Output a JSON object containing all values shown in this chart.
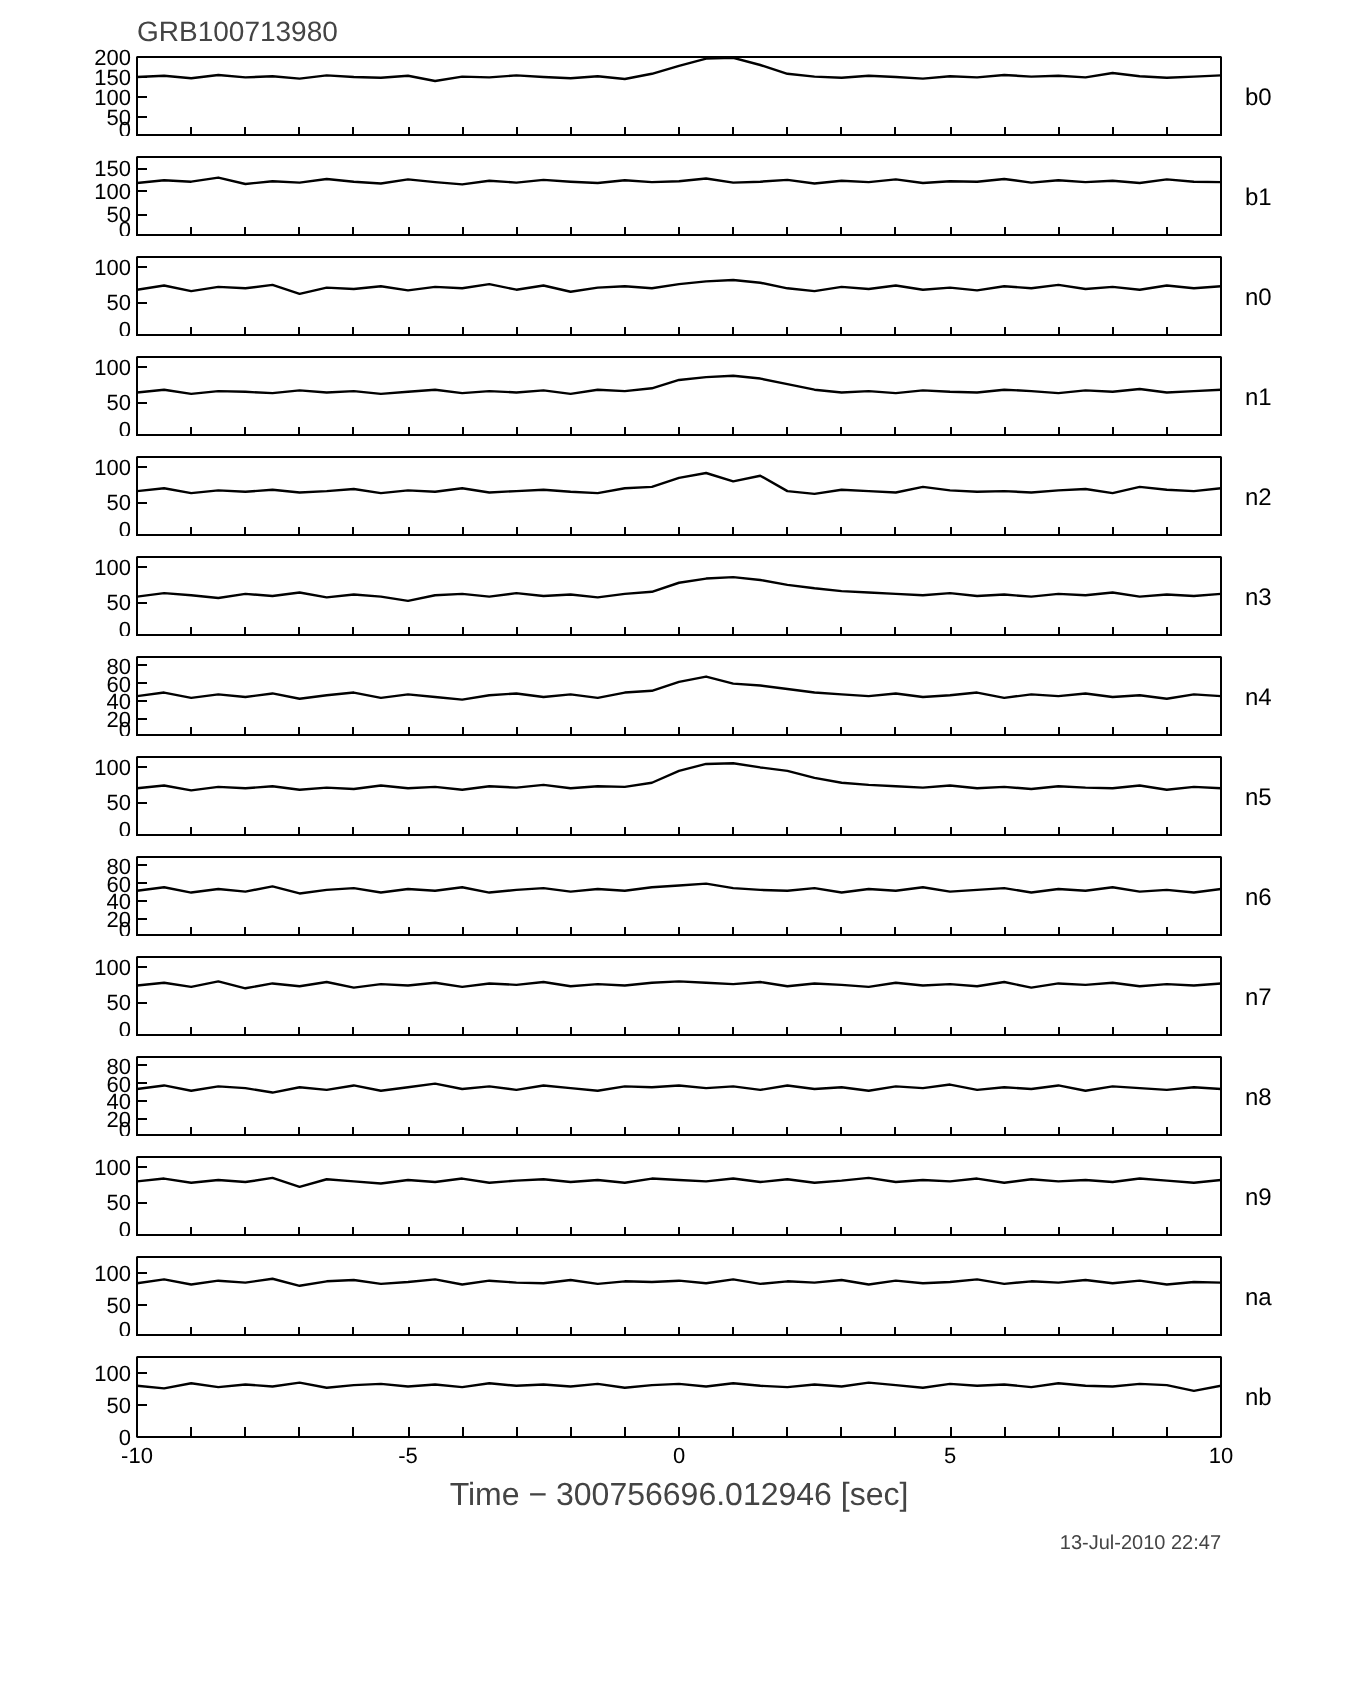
{
  "chart_data": [
    {
      "type": "line",
      "title": "GRB100713980",
      "annotations": [
        "b0"
      ],
      "tick_labels": "y",
      "color": "#000000",
      "xlim": [
        -10,
        10
      ],
      "ylim": [
        0,
        200
      ],
      "yticks": [
        0,
        50,
        100,
        150,
        200
      ],
      "xticks": [
        -10,
        {
          "value": -9,
          "label": null
        },
        {
          "value": -8,
          "label": null
        },
        {
          "value": -7,
          "label": null
        },
        {
          "value": -6,
          "label": null
        },
        -5,
        {
          "value": -4,
          "label": null
        },
        {
          "value": -3,
          "label": null
        },
        {
          "value": -2,
          "label": null
        },
        {
          "value": -1,
          "label": null
        },
        0,
        {
          "value": 1,
          "label": null
        },
        {
          "value": 2,
          "label": null
        },
        {
          "value": 3,
          "label": null
        },
        {
          "value": 4,
          "label": null
        },
        5,
        {
          "value": 6,
          "label": null
        },
        {
          "value": 7,
          "label": null
        },
        {
          "value": 8,
          "label": null
        },
        {
          "value": 9,
          "label": null
        },
        10
      ],
      "x": [
        -10,
        -9.5,
        -9,
        -8.5,
        -8,
        -7.5,
        -7,
        -6.5,
        -6,
        -5.5,
        -5,
        -4.5,
        -4,
        -3.5,
        -3,
        -2.5,
        -2,
        -1.5,
        -1,
        -0.5,
        0,
        0.5,
        1,
        1.5,
        2,
        2.5,
        3,
        3.5,
        4,
        4.5,
        5,
        5.5,
        6,
        6.5,
        7,
        7.5,
        8,
        8.5,
        9,
        9.5,
        10
      ],
      "values": [
        150,
        153,
        147,
        155,
        149,
        152,
        146,
        154,
        150,
        148,
        153,
        140,
        151,
        149,
        154,
        150,
        147,
        152,
        145,
        158,
        178,
        196,
        198,
        180,
        158,
        151,
        148,
        153,
        150,
        146,
        152,
        149,
        155,
        151,
        153,
        149,
        160,
        152,
        148,
        151,
        154
      ]
    },
    {
      "type": "line",
      "annotations": [
        "b1"
      ],
      "tick_labels": "y",
      "color": "#000000",
      "xlim": [
        -10,
        10
      ],
      "ylim": [
        0,
        175
      ],
      "yticks": [
        0,
        50,
        100,
        150
      ],
      "xticks": [
        -10,
        {
          "value": -9,
          "label": null
        },
        {
          "value": -8,
          "label": null
        },
        {
          "value": -7,
          "label": null
        },
        {
          "value": -6,
          "label": null
        },
        -5,
        {
          "value": -4,
          "label": null
        },
        {
          "value": -3,
          "label": null
        },
        {
          "value": -2,
          "label": null
        },
        {
          "value": -1,
          "label": null
        },
        0,
        {
          "value": 1,
          "label": null
        },
        {
          "value": 2,
          "label": null
        },
        {
          "value": 3,
          "label": null
        },
        {
          "value": 4,
          "label": null
        },
        5,
        {
          "value": 6,
          "label": null
        },
        {
          "value": 7,
          "label": null
        },
        {
          "value": 8,
          "label": null
        },
        {
          "value": 9,
          "label": null
        },
        10
      ],
      "x": [
        -10,
        -9.5,
        -9,
        -8.5,
        -8,
        -7.5,
        -7,
        -6.5,
        -6,
        -5.5,
        -5,
        -4.5,
        -4,
        -3.5,
        -3,
        -2.5,
        -2,
        -1.5,
        -1,
        -0.5,
        0,
        0.5,
        1,
        1.5,
        2,
        2.5,
        3,
        3.5,
        4,
        4.5,
        5,
        5.5,
        6,
        6.5,
        7,
        7.5,
        8,
        8.5,
        9,
        9.5,
        10
      ],
      "values": [
        118,
        124,
        121,
        130,
        116,
        122,
        119,
        127,
        121,
        117,
        126,
        120,
        115,
        123,
        119,
        125,
        121,
        118,
        124,
        120,
        122,
        128,
        119,
        121,
        125,
        117,
        123,
        120,
        126,
        118,
        122,
        121,
        127,
        119,
        124,
        120,
        123,
        118,
        126,
        121,
        120
      ]
    },
    {
      "type": "line",
      "annotations": [
        "n0"
      ],
      "tick_labels": "y",
      "color": "#000000",
      "xlim": [
        -10,
        10
      ],
      "ylim": [
        0,
        115
      ],
      "yticks": [
        0,
        50,
        100
      ],
      "xticks": [
        -10,
        {
          "value": -9,
          "label": null
        },
        {
          "value": -8,
          "label": null
        },
        {
          "value": -7,
          "label": null
        },
        {
          "value": -6,
          "label": null
        },
        -5,
        {
          "value": -4,
          "label": null
        },
        {
          "value": -3,
          "label": null
        },
        {
          "value": -2,
          "label": null
        },
        {
          "value": -1,
          "label": null
        },
        0,
        {
          "value": 1,
          "label": null
        },
        {
          "value": 2,
          "label": null
        },
        {
          "value": 3,
          "label": null
        },
        {
          "value": 4,
          "label": null
        },
        5,
        {
          "value": 6,
          "label": null
        },
        {
          "value": 7,
          "label": null
        },
        {
          "value": 8,
          "label": null
        },
        {
          "value": 9,
          "label": null
        },
        10
      ],
      "x": [
        -10,
        -9.5,
        -9,
        -8.5,
        -8,
        -7.5,
        -7,
        -6.5,
        -6,
        -5.5,
        -5,
        -4.5,
        -4,
        -3.5,
        -3,
        -2.5,
        -2,
        -1.5,
        -1,
        -0.5,
        0,
        0.5,
        1,
        1.5,
        2,
        2.5,
        3,
        3.5,
        4,
        4.5,
        5,
        5.5,
        6,
        6.5,
        7,
        7.5,
        8,
        8.5,
        9,
        9.5,
        10
      ],
      "values": [
        68,
        74,
        66,
        72,
        70,
        75,
        62,
        71,
        69,
        73,
        67,
        72,
        70,
        76,
        68,
        74,
        65,
        71,
        73,
        70,
        76,
        80,
        82,
        78,
        70,
        66,
        72,
        69,
        74,
        68,
        71,
        67,
        73,
        70,
        75,
        69,
        72,
        68,
        74,
        70,
        73
      ]
    },
    {
      "type": "line",
      "annotations": [
        "n1"
      ],
      "tick_labels": "y",
      "color": "#000000",
      "xlim": [
        -10,
        10
      ],
      "ylim": [
        0,
        115
      ],
      "yticks": [
        0,
        50,
        100
      ],
      "xticks": [
        -10,
        {
          "value": -9,
          "label": null
        },
        {
          "value": -8,
          "label": null
        },
        {
          "value": -7,
          "label": null
        },
        {
          "value": -6,
          "label": null
        },
        -5,
        {
          "value": -4,
          "label": null
        },
        {
          "value": -3,
          "label": null
        },
        {
          "value": -2,
          "label": null
        },
        {
          "value": -1,
          "label": null
        },
        0,
        {
          "value": 1,
          "label": null
        },
        {
          "value": 2,
          "label": null
        },
        {
          "value": 3,
          "label": null
        },
        {
          "value": 4,
          "label": null
        },
        5,
        {
          "value": 6,
          "label": null
        },
        {
          "value": 7,
          "label": null
        },
        {
          "value": 8,
          "label": null
        },
        {
          "value": 9,
          "label": null
        },
        10
      ],
      "x": [
        -10,
        -9.5,
        -9,
        -8.5,
        -8,
        -7.5,
        -7,
        -6.5,
        -6,
        -5.5,
        -5,
        -4.5,
        -4,
        -3.5,
        -3,
        -2.5,
        -2,
        -1.5,
        -1,
        -0.5,
        0,
        0.5,
        1,
        1.5,
        2,
        2.5,
        3,
        3.5,
        4,
        4.5,
        5,
        5.5,
        6,
        6.5,
        7,
        7.5,
        8,
        8.5,
        9,
        9.5,
        10
      ],
      "values": [
        64,
        68,
        62,
        66,
        65,
        63,
        67,
        64,
        66,
        62,
        65,
        68,
        63,
        66,
        64,
        67,
        62,
        68,
        66,
        70,
        82,
        86,
        88,
        84,
        76,
        68,
        64,
        66,
        63,
        67,
        65,
        64,
        68,
        66,
        63,
        67,
        65,
        69,
        64,
        66,
        68
      ]
    },
    {
      "type": "line",
      "annotations": [
        "n2"
      ],
      "tick_labels": "y",
      "color": "#000000",
      "xlim": [
        -10,
        10
      ],
      "ylim": [
        0,
        115
      ],
      "yticks": [
        0,
        50,
        100
      ],
      "xticks": [
        -10,
        {
          "value": -9,
          "label": null
        },
        {
          "value": -8,
          "label": null
        },
        {
          "value": -7,
          "label": null
        },
        {
          "value": -6,
          "label": null
        },
        -5,
        {
          "value": -4,
          "label": null
        },
        {
          "value": -3,
          "label": null
        },
        {
          "value": -2,
          "label": null
        },
        {
          "value": -1,
          "label": null
        },
        0,
        {
          "value": 1,
          "label": null
        },
        {
          "value": 2,
          "label": null
        },
        {
          "value": 3,
          "label": null
        },
        {
          "value": 4,
          "label": null
        },
        5,
        {
          "value": 6,
          "label": null
        },
        {
          "value": 7,
          "label": null
        },
        {
          "value": 8,
          "label": null
        },
        {
          "value": 9,
          "label": null
        },
        10
      ],
      "x": [
        -10,
        -9.5,
        -9,
        -8.5,
        -8,
        -7.5,
        -7,
        -6.5,
        -6,
        -5.5,
        -5,
        -4.5,
        -4,
        -3.5,
        -3,
        -2.5,
        -2,
        -1.5,
        -1,
        -0.5,
        0,
        0.5,
        1,
        1.5,
        2,
        2.5,
        3,
        3.5,
        4,
        4.5,
        5,
        5.5,
        6,
        6.5,
        7,
        7.5,
        8,
        8.5,
        9,
        9.5,
        10
      ],
      "values": [
        66,
        70,
        63,
        67,
        65,
        68,
        64,
        66,
        69,
        63,
        67,
        65,
        70,
        64,
        66,
        68,
        65,
        63,
        70,
        72,
        85,
        92,
        80,
        88,
        66,
        62,
        68,
        66,
        64,
        72,
        67,
        65,
        66,
        64,
        67,
        69,
        63,
        72,
        68,
        66,
        70
      ]
    },
    {
      "type": "line",
      "annotations": [
        "n3"
      ],
      "tick_labels": "y",
      "color": "#000000",
      "xlim": [
        -10,
        10
      ],
      "ylim": [
        0,
        115
      ],
      "yticks": [
        0,
        50,
        100
      ],
      "xticks": [
        -10,
        {
          "value": -9,
          "label": null
        },
        {
          "value": -8,
          "label": null
        },
        {
          "value": -7,
          "label": null
        },
        {
          "value": -6,
          "label": null
        },
        -5,
        {
          "value": -4,
          "label": null
        },
        {
          "value": -3,
          "label": null
        },
        {
          "value": -2,
          "label": null
        },
        {
          "value": -1,
          "label": null
        },
        0,
        {
          "value": 1,
          "label": null
        },
        {
          "value": 2,
          "label": null
        },
        {
          "value": 3,
          "label": null
        },
        {
          "value": 4,
          "label": null
        },
        5,
        {
          "value": 6,
          "label": null
        },
        {
          "value": 7,
          "label": null
        },
        {
          "value": 8,
          "label": null
        },
        {
          "value": 9,
          "label": null
        },
        10
      ],
      "x": [
        -10,
        -9.5,
        -9,
        -8.5,
        -8,
        -7.5,
        -7,
        -6.5,
        -6,
        -5.5,
        -5,
        -4.5,
        -4,
        -3.5,
        -3,
        -2.5,
        -2,
        -1.5,
        -1,
        -0.5,
        0,
        0.5,
        1,
        1.5,
        2,
        2.5,
        3,
        3.5,
        4,
        4.5,
        5,
        5.5,
        6,
        6.5,
        7,
        7.5,
        8,
        8.5,
        9,
        9.5,
        10
      ],
      "values": [
        58,
        63,
        60,
        56,
        62,
        59,
        64,
        57,
        61,
        58,
        52,
        60,
        62,
        58,
        63,
        59,
        61,
        57,
        62,
        65,
        78,
        84,
        86,
        82,
        75,
        70,
        66,
        64,
        62,
        60,
        63,
        59,
        61,
        58,
        62,
        60,
        64,
        58,
        61,
        59,
        62
      ]
    },
    {
      "type": "line",
      "annotations": [
        "n4"
      ],
      "tick_labels": "y",
      "color": "#000000",
      "xlim": [
        -10,
        10
      ],
      "ylim": [
        0,
        90
      ],
      "yticks": [
        0,
        20,
        40,
        60,
        80
      ],
      "xticks": [
        -10,
        {
          "value": -9,
          "label": null
        },
        {
          "value": -8,
          "label": null
        },
        {
          "value": -7,
          "label": null
        },
        {
          "value": -6,
          "label": null
        },
        -5,
        {
          "value": -4,
          "label": null
        },
        {
          "value": -3,
          "label": null
        },
        {
          "value": -2,
          "label": null
        },
        {
          "value": -1,
          "label": null
        },
        0,
        {
          "value": 1,
          "label": null
        },
        {
          "value": 2,
          "label": null
        },
        {
          "value": 3,
          "label": null
        },
        {
          "value": 4,
          "label": null
        },
        5,
        {
          "value": 6,
          "label": null
        },
        {
          "value": 7,
          "label": null
        },
        {
          "value": 8,
          "label": null
        },
        {
          "value": 9,
          "label": null
        },
        10
      ],
      "x": [
        -10,
        -9.5,
        -9,
        -8.5,
        -8,
        -7.5,
        -7,
        -6.5,
        -6,
        -5.5,
        -5,
        -4.5,
        -4,
        -3.5,
        -3,
        -2.5,
        -2,
        -1.5,
        -1,
        -0.5,
        0,
        0.5,
        1,
        1.5,
        2,
        2.5,
        3,
        3.5,
        4,
        4.5,
        5,
        5.5,
        6,
        6.5,
        7,
        7.5,
        8,
        8.5,
        9,
        9.5,
        10
      ],
      "values": [
        46,
        50,
        44,
        48,
        45,
        49,
        43,
        47,
        50,
        44,
        48,
        45,
        42,
        47,
        49,
        45,
        48,
        44,
        50,
        52,
        62,
        68,
        60,
        58,
        54,
        50,
        48,
        46,
        49,
        45,
        47,
        50,
        44,
        48,
        46,
        49,
        45,
        47,
        43,
        48,
        46
      ]
    },
    {
      "type": "line",
      "annotations": [
        "n5"
      ],
      "tick_labels": "y",
      "color": "#000000",
      "xlim": [
        -10,
        10
      ],
      "ylim": [
        0,
        115
      ],
      "yticks": [
        0,
        50,
        100
      ],
      "xticks": [
        -10,
        {
          "value": -9,
          "label": null
        },
        {
          "value": -8,
          "label": null
        },
        {
          "value": -7,
          "label": null
        },
        {
          "value": -6,
          "label": null
        },
        -5,
        {
          "value": -4,
          "label": null
        },
        {
          "value": -3,
          "label": null
        },
        {
          "value": -2,
          "label": null
        },
        {
          "value": -1,
          "label": null
        },
        0,
        {
          "value": 1,
          "label": null
        },
        {
          "value": 2,
          "label": null
        },
        {
          "value": 3,
          "label": null
        },
        {
          "value": 4,
          "label": null
        },
        5,
        {
          "value": 6,
          "label": null
        },
        {
          "value": 7,
          "label": null
        },
        {
          "value": 8,
          "label": null
        },
        {
          "value": 9,
          "label": null
        },
        10
      ],
      "x": [
        -10,
        -9.5,
        -9,
        -8.5,
        -8,
        -7.5,
        -7,
        -6.5,
        -6,
        -5.5,
        -5,
        -4.5,
        -4,
        -3.5,
        -3,
        -2.5,
        -2,
        -1.5,
        -1,
        -0.5,
        0,
        0.5,
        1,
        1.5,
        2,
        2.5,
        3,
        3.5,
        4,
        4.5,
        5,
        5.5,
        6,
        6.5,
        7,
        7.5,
        8,
        8.5,
        9,
        9.5,
        10
      ],
      "values": [
        70,
        74,
        67,
        72,
        70,
        73,
        68,
        71,
        69,
        74,
        70,
        72,
        68,
        73,
        71,
        75,
        70,
        73,
        72,
        78,
        95,
        105,
        106,
        100,
        95,
        85,
        78,
        75,
        73,
        71,
        74,
        70,
        72,
        69,
        73,
        71,
        70,
        74,
        68,
        72,
        70
      ]
    },
    {
      "type": "line",
      "annotations": [
        "n6"
      ],
      "tick_labels": "y",
      "color": "#000000",
      "xlim": [
        -10,
        10
      ],
      "ylim": [
        0,
        90
      ],
      "yticks": [
        0,
        20,
        40,
        60,
        80
      ],
      "xticks": [
        -10,
        {
          "value": -9,
          "label": null
        },
        {
          "value": -8,
          "label": null
        },
        {
          "value": -7,
          "label": null
        },
        {
          "value": -6,
          "label": null
        },
        -5,
        {
          "value": -4,
          "label": null
        },
        {
          "value": -3,
          "label": null
        },
        {
          "value": -2,
          "label": null
        },
        {
          "value": -1,
          "label": null
        },
        0,
        {
          "value": 1,
          "label": null
        },
        {
          "value": 2,
          "label": null
        },
        {
          "value": 3,
          "label": null
        },
        {
          "value": 4,
          "label": null
        },
        5,
        {
          "value": 6,
          "label": null
        },
        {
          "value": 7,
          "label": null
        },
        {
          "value": 8,
          "label": null
        },
        {
          "value": 9,
          "label": null
        },
        10
      ],
      "x": [
        -10,
        -9.5,
        -9,
        -8.5,
        -8,
        -7.5,
        -7,
        -6.5,
        -6,
        -5.5,
        -5,
        -4.5,
        -4,
        -3.5,
        -3,
        -2.5,
        -2,
        -1.5,
        -1,
        -0.5,
        0,
        0.5,
        1,
        1.5,
        2,
        2.5,
        3,
        3.5,
        4,
        4.5,
        5,
        5.5,
        6,
        6.5,
        7,
        7.5,
        8,
        8.5,
        9,
        9.5,
        10
      ],
      "values": [
        52,
        56,
        50,
        54,
        51,
        57,
        49,
        53,
        55,
        50,
        54,
        52,
        56,
        50,
        53,
        55,
        51,
        54,
        52,
        56,
        58,
        60,
        55,
        53,
        52,
        55,
        50,
        54,
        52,
        56,
        51,
        53,
        55,
        50,
        54,
        52,
        56,
        51,
        53,
        50,
        54
      ]
    },
    {
      "type": "line",
      "annotations": [
        "n7"
      ],
      "tick_labels": "y",
      "color": "#000000",
      "xlim": [
        -10,
        10
      ],
      "ylim": [
        0,
        115
      ],
      "yticks": [
        0,
        50,
        100
      ],
      "xticks": [
        -10,
        {
          "value": -9,
          "label": null
        },
        {
          "value": -8,
          "label": null
        },
        {
          "value": -7,
          "label": null
        },
        {
          "value": -6,
          "label": null
        },
        -5,
        {
          "value": -4,
          "label": null
        },
        {
          "value": -3,
          "label": null
        },
        {
          "value": -2,
          "label": null
        },
        {
          "value": -1,
          "label": null
        },
        0,
        {
          "value": 1,
          "label": null
        },
        {
          "value": 2,
          "label": null
        },
        {
          "value": 3,
          "label": null
        },
        {
          "value": 4,
          "label": null
        },
        5,
        {
          "value": 6,
          "label": null
        },
        {
          "value": 7,
          "label": null
        },
        {
          "value": 8,
          "label": null
        },
        {
          "value": 9,
          "label": null
        },
        10
      ],
      "x": [
        -10,
        -9.5,
        -9,
        -8.5,
        -8,
        -7.5,
        -7,
        -6.5,
        -6,
        -5.5,
        -5,
        -4.5,
        -4,
        -3.5,
        -3,
        -2.5,
        -2,
        -1.5,
        -1,
        -0.5,
        0,
        0.5,
        1,
        1.5,
        2,
        2.5,
        3,
        3.5,
        4,
        4.5,
        5,
        5.5,
        6,
        6.5,
        7,
        7.5,
        8,
        8.5,
        9,
        9.5,
        10
      ],
      "values": [
        74,
        78,
        72,
        80,
        70,
        77,
        73,
        79,
        71,
        76,
        74,
        78,
        72,
        77,
        75,
        79,
        73,
        76,
        74,
        78,
        80,
        78,
        76,
        79,
        73,
        77,
        75,
        72,
        78,
        74,
        76,
        73,
        79,
        71,
        77,
        75,
        78,
        73,
        76,
        74,
        77
      ]
    },
    {
      "type": "line",
      "annotations": [
        "n8"
      ],
      "tick_labels": "y",
      "color": "#000000",
      "xlim": [
        -10,
        10
      ],
      "ylim": [
        0,
        90
      ],
      "yticks": [
        0,
        20,
        40,
        60,
        80
      ],
      "xticks": [
        -10,
        {
          "value": -9,
          "label": null
        },
        {
          "value": -8,
          "label": null
        },
        {
          "value": -7,
          "label": null
        },
        {
          "value": -6,
          "label": null
        },
        -5,
        {
          "value": -4,
          "label": null
        },
        {
          "value": -3,
          "label": null
        },
        {
          "value": -2,
          "label": null
        },
        {
          "value": -1,
          "label": null
        },
        0,
        {
          "value": 1,
          "label": null
        },
        {
          "value": 2,
          "label": null
        },
        {
          "value": 3,
          "label": null
        },
        {
          "value": 4,
          "label": null
        },
        5,
        {
          "value": 6,
          "label": null
        },
        {
          "value": 7,
          "label": null
        },
        {
          "value": 8,
          "label": null
        },
        {
          "value": 9,
          "label": null
        },
        10
      ],
      "x": [
        -10,
        -9.5,
        -9,
        -8.5,
        -8,
        -7.5,
        -7,
        -6.5,
        -6,
        -5.5,
        -5,
        -4.5,
        -4,
        -3.5,
        -3,
        -2.5,
        -2,
        -1.5,
        -1,
        -0.5,
        0,
        0.5,
        1,
        1.5,
        2,
        2.5,
        3,
        3.5,
        4,
        4.5,
        5,
        5.5,
        6,
        6.5,
        7,
        7.5,
        8,
        8.5,
        9,
        9.5,
        10
      ],
      "values": [
        54,
        58,
        52,
        57,
        55,
        50,
        56,
        53,
        58,
        52,
        56,
        60,
        54,
        57,
        53,
        58,
        55,
        52,
        57,
        56,
        58,
        55,
        57,
        53,
        58,
        54,
        56,
        52,
        57,
        55,
        59,
        53,
        56,
        54,
        58,
        52,
        57,
        55,
        53,
        56,
        54
      ]
    },
    {
      "type": "line",
      "annotations": [
        "n9"
      ],
      "tick_labels": "y",
      "color": "#000000",
      "xlim": [
        -10,
        10
      ],
      "ylim": [
        0,
        115
      ],
      "yticks": [
        0,
        50,
        100
      ],
      "xticks": [
        -10,
        {
          "value": -9,
          "label": null
        },
        {
          "value": -8,
          "label": null
        },
        {
          "value": -7,
          "label": null
        },
        {
          "value": -6,
          "label": null
        },
        -5,
        {
          "value": -4,
          "label": null
        },
        {
          "value": -3,
          "label": null
        },
        {
          "value": -2,
          "label": null
        },
        {
          "value": -1,
          "label": null
        },
        0,
        {
          "value": 1,
          "label": null
        },
        {
          "value": 2,
          "label": null
        },
        {
          "value": 3,
          "label": null
        },
        {
          "value": 4,
          "label": null
        },
        5,
        {
          "value": 6,
          "label": null
        },
        {
          "value": 7,
          "label": null
        },
        {
          "value": 8,
          "label": null
        },
        {
          "value": 9,
          "label": null
        },
        10
      ],
      "x": [
        -10,
        -9.5,
        -9,
        -8.5,
        -8,
        -7.5,
        -7,
        -6.5,
        -6,
        -5.5,
        -5,
        -4.5,
        -4,
        -3.5,
        -3,
        -2.5,
        -2,
        -1.5,
        -1,
        -0.5,
        0,
        0.5,
        1,
        1.5,
        2,
        2.5,
        3,
        3.5,
        4,
        4.5,
        5,
        5.5,
        6,
        6.5,
        7,
        7.5,
        8,
        8.5,
        9,
        9.5,
        10
      ],
      "values": [
        80,
        84,
        78,
        82,
        79,
        85,
        72,
        83,
        80,
        77,
        82,
        79,
        84,
        78,
        81,
        83,
        79,
        82,
        78,
        84,
        82,
        80,
        84,
        79,
        83,
        78,
        81,
        85,
        79,
        82,
        80,
        84,
        78,
        83,
        80,
        82,
        79,
        84,
        81,
        78,
        82
      ]
    },
    {
      "type": "line",
      "annotations": [
        "na"
      ],
      "tick_labels": "y",
      "color": "#000000",
      "xlim": [
        -10,
        10
      ],
      "ylim": [
        0,
        125
      ],
      "yticks": [
        0,
        50,
        100
      ],
      "xticks": [
        -10,
        {
          "value": -9,
          "label": null
        },
        {
          "value": -8,
          "label": null
        },
        {
          "value": -7,
          "label": null
        },
        {
          "value": -6,
          "label": null
        },
        -5,
        {
          "value": -4,
          "label": null
        },
        {
          "value": -3,
          "label": null
        },
        {
          "value": -2,
          "label": null
        },
        {
          "value": -1,
          "label": null
        },
        0,
        {
          "value": 1,
          "label": null
        },
        {
          "value": 2,
          "label": null
        },
        {
          "value": 3,
          "label": null
        },
        {
          "value": 4,
          "label": null
        },
        5,
        {
          "value": 6,
          "label": null
        },
        {
          "value": 7,
          "label": null
        },
        {
          "value": 8,
          "label": null
        },
        {
          "value": 9,
          "label": null
        },
        10
      ],
      "x": [
        -10,
        -9.5,
        -9,
        -8.5,
        -8,
        -7.5,
        -7,
        -6.5,
        -6,
        -5.5,
        -5,
        -4.5,
        -4,
        -3.5,
        -3,
        -2.5,
        -2,
        -1.5,
        -1,
        -0.5,
        0,
        0.5,
        1,
        1.5,
        2,
        2.5,
        3,
        3.5,
        4,
        4.5,
        5,
        5.5,
        6,
        6.5,
        7,
        7.5,
        8,
        8.5,
        9,
        9.5,
        10
      ],
      "values": [
        84,
        90,
        82,
        88,
        85,
        91,
        80,
        87,
        89,
        83,
        86,
        90,
        82,
        88,
        85,
        84,
        89,
        83,
        87,
        86,
        88,
        84,
        90,
        83,
        87,
        85,
        89,
        82,
        88,
        84,
        86,
        90,
        83,
        87,
        85,
        89,
        84,
        88,
        82,
        86,
        85
      ]
    },
    {
      "type": "line",
      "annotations": [
        "nb",
        "13-Jul-2010 22:47"
      ],
      "xlabel": "Time − 300756696.012946 [sec]",
      "color": "#000000",
      "xlim": [
        -10,
        10
      ],
      "ylim": [
        0,
        125
      ],
      "yticks": [
        0,
        50,
        100
      ],
      "xticks": [
        -10,
        {
          "value": -9,
          "label": null
        },
        {
          "value": -8,
          "label": null
        },
        {
          "value": -7,
          "label": null
        },
        {
          "value": -6,
          "label": null
        },
        -5,
        {
          "value": -4,
          "label": null
        },
        {
          "value": -3,
          "label": null
        },
        {
          "value": -2,
          "label": null
        },
        {
          "value": -1,
          "label": null
        },
        0,
        {
          "value": 1,
          "label": null
        },
        {
          "value": 2,
          "label": null
        },
        {
          "value": 3,
          "label": null
        },
        {
          "value": 4,
          "label": null
        },
        5,
        {
          "value": 6,
          "label": null
        },
        {
          "value": 7,
          "label": null
        },
        {
          "value": 8,
          "label": null
        },
        {
          "value": 9,
          "label": null
        },
        10
      ],
      "x": [
        -10,
        -9.5,
        -9,
        -8.5,
        -8,
        -7.5,
        -7,
        -6.5,
        -6,
        -5.5,
        -5,
        -4.5,
        -4,
        -3.5,
        -3,
        -2.5,
        -2,
        -1.5,
        -1,
        -0.5,
        0,
        0.5,
        1,
        1.5,
        2,
        2.5,
        3,
        3.5,
        4,
        4.5,
        5,
        5.5,
        6,
        6.5,
        7,
        7.5,
        8,
        8.5,
        9,
        9.5,
        10
      ],
      "values": [
        80,
        76,
        84,
        78,
        82,
        79,
        85,
        77,
        81,
        83,
        79,
        82,
        78,
        84,
        80,
        82,
        79,
        83,
        77,
        81,
        83,
        79,
        84,
        80,
        78,
        82,
        79,
        85,
        81,
        77,
        83,
        80,
        82,
        78,
        84,
        80,
        79,
        83,
        81,
        72,
        80
      ]
    }
  ]
}
